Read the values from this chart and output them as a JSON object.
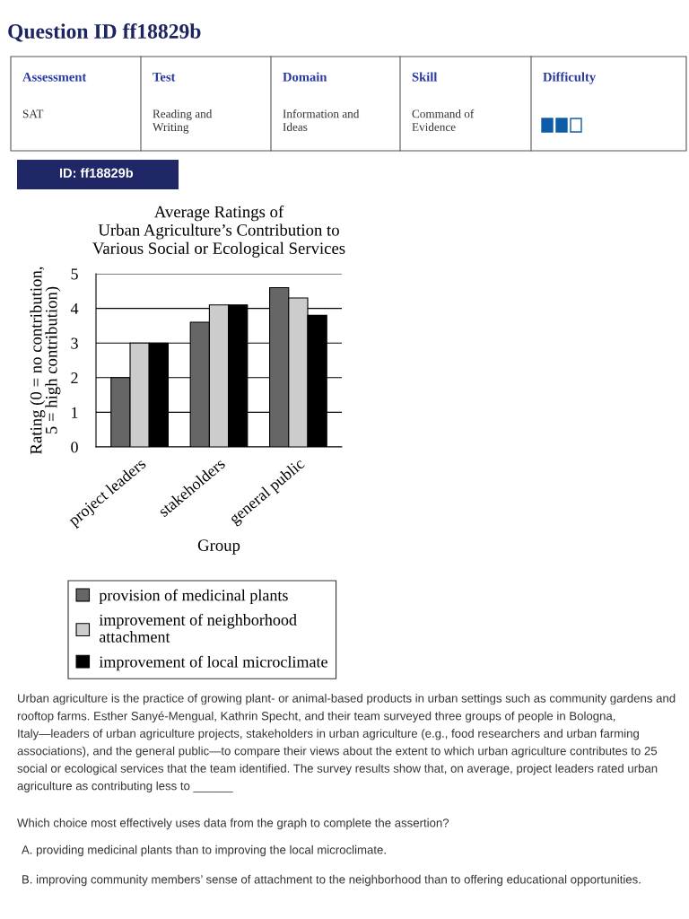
{
  "chart_data": {
    "type": "bar",
    "title": "Average Ratings of\nUrban Agriculture’s Contribution to\nVarious Social or Ecological Services",
    "xlabel": "Group",
    "ylabel": "Rating (0 = no contribution,\n5 = high contribution)",
    "categories": [
      "project leaders",
      "stakeholders",
      "general public"
    ],
    "series": [
      {
        "name": "provision of medicinal plants",
        "color": "#666666",
        "values": [
          2,
          3.6,
          4.6
        ]
      },
      {
        "name": "improvement of neighborhood\nattachment",
        "color": "#cccccc",
        "values": [
          3,
          4.1,
          4.3
        ]
      },
      {
        "name": "improvement of local microclimate",
        "color": "#000000",
        "values": [
          3,
          4.1,
          3.8
        ]
      }
    ],
    "ylim": [
      0,
      5
    ],
    "yticks": [
      0,
      1,
      2,
      3,
      4,
      5
    ],
    "grid": "y",
    "legend": "bottom",
    "annotations": [
      "Question ID ff18829b",
      "Assessment",
      "Test",
      "Domain",
      "Skill",
      "Difficulty",
      "SAT",
      "Reading and Writing",
      "Information and Ideas",
      "Command of Evidence",
      "ID: ff18829b",
      "Urban agriculture is the practice of growing plant- or animal-based products in urban settings such as community gardens and rooftop farms. Esther Sanyé-Mengual, Kathrin Specht, and their team surveyed three groups of people in Bologna, Italy—leaders of urban agriculture projects, stakeholders in urban agriculture (e.g., food researchers and urban farming associations), and the general public—to compare their views about the extent to which urban agriculture contributes to 25 social or ecological services that the team identified. The survey results show that, on average, project leaders rated urban agriculture as contributing less to ______",
      "Which choice most effectively uses data from the graph to complete the assertion?",
      "A. providing medicinal plants than to improving the local microclimate.",
      "B. improving community members’ sense of attachment to the neighborhood than to offering educational opportunities."
    ]
  }
}
